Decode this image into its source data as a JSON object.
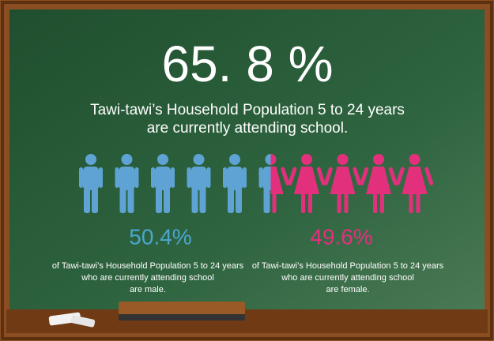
{
  "headline": {
    "value": "65. 8 %",
    "lines": [
      "Tawi-tawi’s Household Population 5 to 24 years",
      "are currently attending school."
    ]
  },
  "male": {
    "percent": "50.4%",
    "lines": [
      "of Tawi-tawi’s Household Population 5 to 24 years",
      "who are currently attending school",
      "are male."
    ]
  },
  "female": {
    "percent": "49.6%",
    "lines": [
      "of Tawi-tawi’s Household Population 5 to 24 years",
      "who are currently attending school",
      "are female."
    ]
  }
}
